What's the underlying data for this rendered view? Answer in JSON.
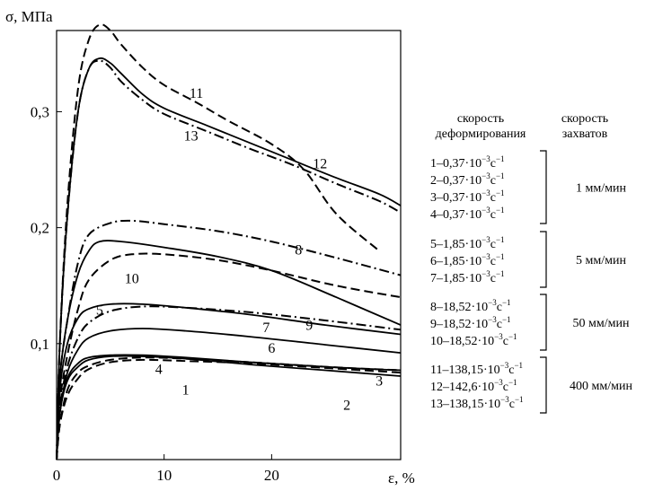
{
  "chart_data": {
    "type": "line",
    "title": "",
    "xlabel": "ε, %",
    "ylabel": "σ, МПа",
    "xlim": [
      0,
      32
    ],
    "ylim": [
      0,
      0.37
    ],
    "x_ticks": [
      {
        "value": 0,
        "label": "0"
      },
      {
        "value": 10,
        "label": "10"
      },
      {
        "value": 20,
        "label": "20"
      }
    ],
    "y_ticks": [
      {
        "value": 0.1,
        "label": "0,1"
      },
      {
        "value": 0.2,
        "label": "0,2"
      },
      {
        "value": 0.3,
        "label": "0,3"
      }
    ],
    "grid": false,
    "legend_placement": "right",
    "legend_headers": {
      "rate": [
        "скорость",
        "деформирования"
      ],
      "grips": [
        "скорость",
        "захватов"
      ]
    },
    "legend_groups": [
      {
        "grip_speed": "1 мм/мин",
        "entries": [
          {
            "pre": "1–0,37·10",
            "exp": "−3",
            "unit": "с",
            "uexp": "−1"
          },
          {
            "pre": "2–0,37·10",
            "exp": "−3",
            "unit": "с",
            "uexp": "−1"
          },
          {
            "pre": "3–0,37·10",
            "exp": "−3",
            "unit": "с",
            "uexp": "−1"
          },
          {
            "pre": "4–0,37·10",
            "exp": "−3",
            "unit": "с",
            "uexp": "−1"
          }
        ]
      },
      {
        "grip_speed": "5 мм/мин",
        "entries": [
          {
            "pre": "5–1,85·10",
            "exp": "−3",
            "unit": "с",
            "uexp": "−1"
          },
          {
            "pre": "6–1,85·10",
            "exp": "−3",
            "unit": "с",
            "uexp": "−1"
          },
          {
            "pre": "7–1,85·10",
            "exp": "−3",
            "unit": "с",
            "uexp": "−1"
          }
        ]
      },
      {
        "grip_speed": "50 мм/мин",
        "entries": [
          {
            "pre": "8–18,52·10",
            "exp": "−3",
            "unit": "с",
            "uexp": "−1"
          },
          {
            "pre": "9–18,52·10",
            "exp": "−3",
            "unit": "с",
            "uexp": "−1"
          },
          {
            "pre": "10–18,52·10",
            "exp": "−3",
            "unit": "с",
            "uexp": "−1"
          }
        ]
      },
      {
        "grip_speed": "400 мм/мин",
        "entries": [
          {
            "pre": "11–138,15·10",
            "exp": "−3",
            "unit": "с",
            "uexp": "−1"
          },
          {
            "pre": "12–142,6·10",
            "exp": "−3",
            "unit": "с",
            "uexp": "−1"
          },
          {
            "pre": "13–138,15·10",
            "exp": "−3",
            "unit": "с",
            "uexp": "−1"
          }
        ]
      }
    ],
    "series": [
      {
        "label": "1",
        "dash": "solid",
        "label_at": [
          12,
          0.056
        ],
        "points": [
          [
            0,
            0
          ],
          [
            0.3,
            0.04
          ],
          [
            1,
            0.068
          ],
          [
            2,
            0.08
          ],
          [
            3,
            0.086
          ],
          [
            5,
            0.089
          ],
          [
            8,
            0.089
          ],
          [
            12,
            0.087
          ],
          [
            18,
            0.082
          ],
          [
            25,
            0.077
          ],
          [
            32,
            0.072
          ]
        ]
      },
      {
        "label": "2",
        "dash": "dash",
        "label_at": [
          27,
          0.043
        ],
        "points": [
          [
            0,
            0
          ],
          [
            0.3,
            0.03
          ],
          [
            1,
            0.055
          ],
          [
            2,
            0.07
          ],
          [
            3,
            0.078
          ],
          [
            5,
            0.084
          ],
          [
            8,
            0.086
          ],
          [
            12,
            0.085
          ],
          [
            18,
            0.083
          ],
          [
            25,
            0.079
          ],
          [
            32,
            0.075
          ]
        ]
      },
      {
        "label": "3",
        "dash": "solid",
        "label_at": [
          30,
          0.064
        ],
        "points": [
          [
            0,
            0
          ],
          [
            0.3,
            0.04
          ],
          [
            1,
            0.07
          ],
          [
            2,
            0.083
          ],
          [
            3,
            0.088
          ],
          [
            5,
            0.09
          ],
          [
            8,
            0.09
          ],
          [
            12,
            0.088
          ],
          [
            18,
            0.084
          ],
          [
            25,
            0.08
          ],
          [
            32,
            0.077
          ]
        ]
      },
      {
        "label": "4",
        "dash": "dash",
        "label_at": [
          9.5,
          0.074
        ],
        "points": [
          [
            0,
            0
          ],
          [
            0.3,
            0.03
          ],
          [
            1,
            0.06
          ],
          [
            2,
            0.075
          ],
          [
            3,
            0.081
          ],
          [
            5,
            0.086
          ],
          [
            8,
            0.088
          ],
          [
            12,
            0.087
          ],
          [
            18,
            0.084
          ],
          [
            25,
            0.08
          ],
          [
            32,
            0.077
          ]
        ]
      },
      {
        "label": "5",
        "dash": "solid",
        "label_at": [
          4,
          0.125
        ],
        "points": [
          [
            0,
            0
          ],
          [
            0.3,
            0.06
          ],
          [
            1,
            0.1
          ],
          [
            2,
            0.122
          ],
          [
            3,
            0.13
          ],
          [
            5,
            0.134
          ],
          [
            8,
            0.134
          ],
          [
            12,
            0.131
          ],
          [
            18,
            0.125
          ],
          [
            25,
            0.116
          ],
          [
            32,
            0.108
          ]
        ]
      },
      {
        "label": "6",
        "dash": "solid",
        "label_at": [
          20,
          0.092
        ],
        "points": [
          [
            0,
            0
          ],
          [
            0.3,
            0.04
          ],
          [
            1,
            0.075
          ],
          [
            2,
            0.095
          ],
          [
            3,
            0.105
          ],
          [
            5,
            0.111
          ],
          [
            8,
            0.113
          ],
          [
            12,
            0.111
          ],
          [
            18,
            0.106
          ],
          [
            25,
            0.099
          ],
          [
            32,
            0.092
          ]
        ]
      },
      {
        "label": "7",
        "dash": "dashdot",
        "label_at": [
          19.5,
          0.11
        ],
        "points": [
          [
            0,
            0
          ],
          [
            0.3,
            0.045
          ],
          [
            1,
            0.08
          ],
          [
            2,
            0.105
          ],
          [
            3,
            0.118
          ],
          [
            5,
            0.128
          ],
          [
            8,
            0.132
          ],
          [
            12,
            0.131
          ],
          [
            18,
            0.127
          ],
          [
            25,
            0.12
          ],
          [
            32,
            0.112
          ]
        ]
      },
      {
        "label": "8",
        "dash": "dashdot",
        "label_at": [
          22.5,
          0.177
        ],
        "points": [
          [
            0,
            0
          ],
          [
            0.3,
            0.07
          ],
          [
            1,
            0.12
          ],
          [
            2,
            0.17
          ],
          [
            3,
            0.194
          ],
          [
            5,
            0.204
          ],
          [
            7,
            0.206
          ],
          [
            10,
            0.203
          ],
          [
            15,
            0.197
          ],
          [
            20,
            0.188
          ],
          [
            26,
            0.174
          ],
          [
            32,
            0.159
          ]
        ]
      },
      {
        "label": "9",
        "dash": "solid",
        "label_at": [
          23.5,
          0.112
        ],
        "points": [
          [
            0,
            0
          ],
          [
            0.3,
            0.07
          ],
          [
            1,
            0.12
          ],
          [
            2,
            0.16
          ],
          [
            3,
            0.18
          ],
          [
            4,
            0.188
          ],
          [
            6,
            0.188
          ],
          [
            10,
            0.183
          ],
          [
            15,
            0.175
          ],
          [
            20,
            0.163
          ],
          [
            26,
            0.14
          ],
          [
            32,
            0.116
          ]
        ]
      },
      {
        "label": "10",
        "dash": "dash",
        "label_at": [
          7,
          0.152
        ],
        "points": [
          [
            0,
            0
          ],
          [
            0.3,
            0.05
          ],
          [
            1,
            0.09
          ],
          [
            2,
            0.13
          ],
          [
            3,
            0.155
          ],
          [
            5,
            0.172
          ],
          [
            7,
            0.177
          ],
          [
            10,
            0.177
          ],
          [
            15,
            0.172
          ],
          [
            20,
            0.163
          ],
          [
            26,
            0.15
          ],
          [
            32,
            0.14
          ]
        ]
      },
      {
        "label": "11",
        "dash": "dash",
        "label_at": [
          13,
          0.312
        ],
        "points": [
          [
            0,
            0
          ],
          [
            0.3,
            0.1
          ],
          [
            1,
            0.22
          ],
          [
            2,
            0.32
          ],
          [
            3,
            0.362
          ],
          [
            4,
            0.375
          ],
          [
            5,
            0.37
          ],
          [
            6,
            0.358
          ],
          [
            8,
            0.338
          ],
          [
            10,
            0.323
          ],
          [
            13,
            0.308
          ],
          [
            16,
            0.292
          ],
          [
            20,
            0.272
          ],
          [
            23,
            0.25
          ],
          [
            26,
            0.212
          ],
          [
            30,
            0.18
          ]
        ]
      },
      {
        "label": "12",
        "dash": "solid",
        "label_at": [
          24.5,
          0.251
        ],
        "points": [
          [
            0,
            0
          ],
          [
            0.3,
            0.1
          ],
          [
            1,
            0.21
          ],
          [
            2,
            0.3
          ],
          [
            3,
            0.337
          ],
          [
            4,
            0.346
          ],
          [
            5,
            0.342
          ],
          [
            6,
            0.333
          ],
          [
            8,
            0.315
          ],
          [
            10,
            0.303
          ],
          [
            14,
            0.288
          ],
          [
            18,
            0.273
          ],
          [
            22,
            0.258
          ],
          [
            26,
            0.243
          ],
          [
            30,
            0.229
          ],
          [
            32,
            0.219
          ]
        ]
      },
      {
        "label": "13",
        "dash": "dashdot",
        "label_at": [
          12.5,
          0.275
        ],
        "points": [
          [
            0,
            0
          ],
          [
            0.3,
            0.1
          ],
          [
            1,
            0.21
          ],
          [
            2,
            0.3
          ],
          [
            3,
            0.337
          ],
          [
            4,
            0.344
          ],
          [
            5,
            0.338
          ],
          [
            6,
            0.326
          ],
          [
            8,
            0.31
          ],
          [
            10,
            0.298
          ],
          [
            14,
            0.283
          ],
          [
            18,
            0.268
          ],
          [
            22,
            0.254
          ],
          [
            26,
            0.238
          ],
          [
            30,
            0.223
          ],
          [
            32,
            0.213
          ]
        ]
      }
    ]
  }
}
